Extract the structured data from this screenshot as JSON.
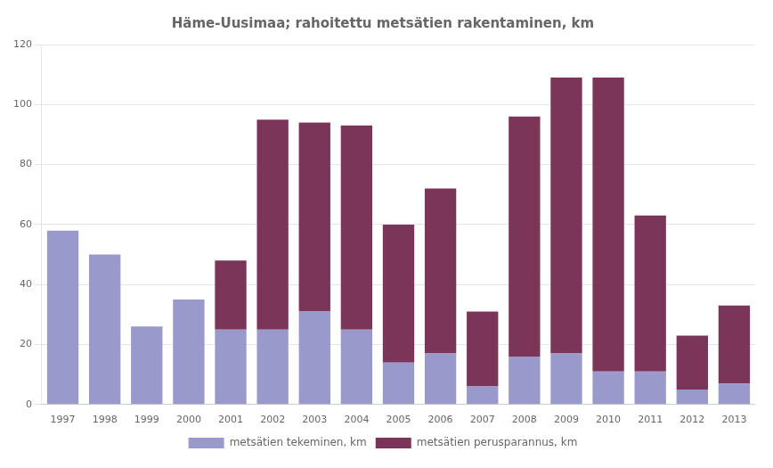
{
  "chart_data": {
    "type": "bar",
    "stacked": true,
    "title": "Häme-Uusimaa; rahoitettu metsätien rakentaminen, km",
    "categories": [
      "1997",
      "1998",
      "1999",
      "2000",
      "2001",
      "2002",
      "2003",
      "2004",
      "2005",
      "2006",
      "2007",
      "2008",
      "2009",
      "2010",
      "2011",
      "2012",
      "2013"
    ],
    "series": [
      {
        "name": "metsätien tekeminen, km",
        "color": "#9999cc",
        "values": [
          58,
          50,
          26,
          35,
          25,
          25,
          31,
          25,
          14,
          17,
          6,
          16,
          17,
          11,
          11,
          5,
          7
        ]
      },
      {
        "name": "metsätien perusparannus, km",
        "color": "#7b3558",
        "values": [
          0,
          0,
          0,
          0,
          23,
          70,
          63,
          68,
          46,
          55,
          25,
          80,
          92,
          98,
          52,
          18,
          26
        ]
      }
    ],
    "ylim": [
      0,
      120
    ],
    "yticks": [
      0,
      20,
      40,
      60,
      80,
      100,
      120
    ],
    "grid": true,
    "legend": "bottom"
  }
}
